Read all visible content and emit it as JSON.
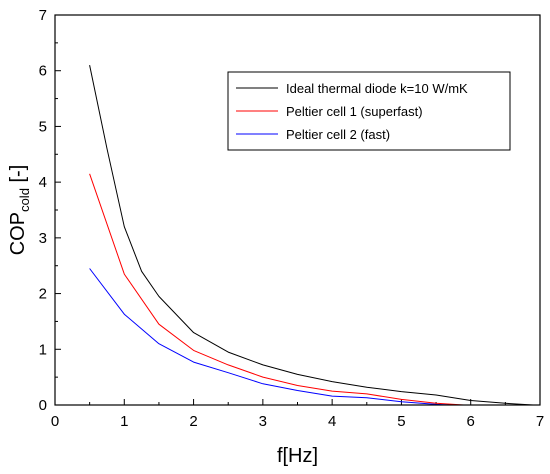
{
  "chart_data": {
    "type": "line",
    "xlabel": "f[Hz]",
    "ylabel_main": "COP",
    "ylabel_sub": "cold",
    "ylabel_unit": " [-]",
    "xlim": [
      0,
      7
    ],
    "ylim": [
      0,
      7
    ],
    "xticks": [
      0,
      1,
      2,
      3,
      4,
      5,
      6,
      7
    ],
    "yticks": [
      0,
      1,
      2,
      3,
      4,
      5,
      6,
      7
    ],
    "grid": false,
    "legend_position": "top-right",
    "series": [
      {
        "name": "Ideal thermal diode k=10 W/mK",
        "color": "#000000",
        "x": [
          0.5,
          0.75,
          1.0,
          1.25,
          1.5,
          2.0,
          2.5,
          3.0,
          3.5,
          4.0,
          4.5,
          5.0,
          5.5,
          6.0,
          6.5,
          6.9
        ],
        "y": [
          6.1,
          4.6,
          3.2,
          2.4,
          1.95,
          1.3,
          0.95,
          0.72,
          0.55,
          0.42,
          0.32,
          0.24,
          0.18,
          0.08,
          0.03,
          0.0
        ]
      },
      {
        "name": "Peltier cell 1 (superfast)",
        "color": "#ff0000",
        "x": [
          0.5,
          1.0,
          1.5,
          2.0,
          2.5,
          3.0,
          3.5,
          4.0,
          4.5,
          5.0,
          5.5,
          5.9
        ],
        "y": [
          4.15,
          2.35,
          1.45,
          0.98,
          0.72,
          0.5,
          0.35,
          0.25,
          0.2,
          0.1,
          0.03,
          0.0
        ]
      },
      {
        "name": "Peltier cell 2 (fast)",
        "color": "#0000ff",
        "x": [
          0.5,
          1.0,
          1.5,
          2.0,
          2.5,
          3.0,
          3.5,
          4.0,
          4.5,
          5.0,
          5.5,
          5.7
        ],
        "y": [
          2.45,
          1.63,
          1.1,
          0.77,
          0.58,
          0.38,
          0.26,
          0.16,
          0.13,
          0.06,
          0.01,
          0.0
        ]
      }
    ]
  }
}
